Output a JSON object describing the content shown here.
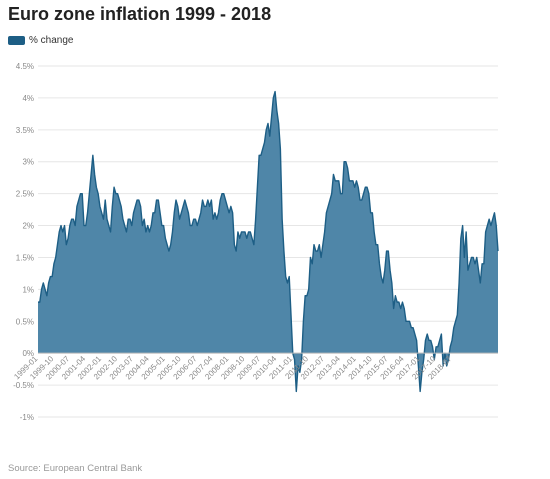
{
  "title": "Euro zone inflation 1999 - 2018",
  "source": "Source: European Central Bank",
  "colors": {
    "fill": "#4f86a8",
    "stroke": "#1d5e85",
    "grid": "#e6e6e6",
    "tick_text": "#888888"
  },
  "chart_data": {
    "type": "area",
    "title": "Euro zone inflation 1999 - 2018",
    "xlabel": "",
    "ylabel": "",
    "ylim": [
      -1,
      4.5
    ],
    "yticks": [
      -1,
      -0.5,
      0,
      0.5,
      1,
      1.5,
      2,
      2.5,
      3,
      3.5,
      4,
      4.5
    ],
    "ytick_labels": [
      "-1%",
      "-0.5%",
      "0%",
      "0.5%",
      "1%",
      "1.5%",
      "2%",
      "2.5%",
      "3%",
      "3.5%",
      "4%",
      "4.5%"
    ],
    "xticks": [
      "1999-01",
      "1999-10",
      "2000-07",
      "2001-04",
      "2002-01",
      "2002-10",
      "2003-07",
      "2004-04",
      "2005-01",
      "2005-10",
      "2006-07",
      "2007-04",
      "2008-01",
      "2008-10",
      "2009-07",
      "2010-04",
      "2011-01",
      "2011-10",
      "2012-07",
      "2013-04",
      "2014-01",
      "2014-10",
      "2015-07",
      "2016-04",
      "2017-01",
      "2017-10",
      "2018-07"
    ],
    "x_start": "1999-01",
    "grid": true,
    "legend_position": "top-left",
    "series": [
      {
        "name": "% change",
        "values": [
          0.8,
          0.8,
          1.0,
          1.1,
          1.0,
          0.9,
          1.1,
          1.2,
          1.2,
          1.4,
          1.5,
          1.7,
          1.9,
          2.0,
          1.9,
          2.0,
          1.7,
          1.8,
          2.0,
          2.1,
          2.1,
          2.0,
          2.3,
          2.4,
          2.5,
          2.5,
          2.0,
          2.0,
          2.2,
          2.5,
          2.8,
          3.1,
          2.8,
          2.6,
          2.5,
          2.3,
          2.2,
          2.1,
          2.4,
          2.1,
          2.0,
          1.9,
          2.3,
          2.6,
          2.5,
          2.5,
          2.4,
          2.3,
          2.1,
          2.0,
          1.9,
          2.1,
          2.1,
          2.0,
          2.2,
          2.3,
          2.4,
          2.4,
          2.3,
          2.0,
          2.1,
          1.9,
          2.0,
          1.9,
          2.0,
          2.2,
          2.2,
          2.4,
          2.4,
          2.2,
          2.0,
          2.0,
          1.8,
          1.7,
          1.6,
          1.7,
          1.9,
          2.2,
          2.4,
          2.3,
          2.1,
          2.2,
          2.3,
          2.4,
          2.3,
          2.2,
          2.0,
          2.0,
          2.1,
          2.1,
          2.0,
          2.1,
          2.2,
          2.4,
          2.3,
          2.3,
          2.4,
          2.3,
          2.4,
          2.1,
          2.2,
          2.1,
          2.2,
          2.4,
          2.5,
          2.5,
          2.4,
          2.3,
          2.2,
          2.3,
          2.2,
          1.7,
          1.6,
          1.9,
          1.8,
          1.9,
          1.9,
          1.9,
          1.8,
          1.9,
          1.9,
          1.8,
          1.7,
          2.1,
          2.6,
          3.1,
          3.1,
          3.2,
          3.3,
          3.5,
          3.6,
          3.4,
          3.7,
          4.0,
          4.1,
          3.8,
          3.6,
          3.2,
          2.1,
          1.6,
          1.2,
          1.1,
          1.2,
          0.6,
          0.0,
          -0.1,
          -0.6,
          -0.2,
          -0.3,
          -0.1,
          0.5,
          0.9,
          0.9,
          1.0,
          1.5,
          1.4,
          1.7,
          1.6,
          1.6,
          1.7,
          1.5,
          1.7,
          1.9,
          2.2,
          2.3,
          2.4,
          2.5,
          2.8,
          2.7,
          2.7,
          2.7,
          2.5,
          2.5,
          3.0,
          3.0,
          2.9,
          2.7,
          2.7,
          2.7,
          2.6,
          2.7,
          2.6,
          2.4,
          2.4,
          2.5,
          2.6,
          2.6,
          2.5,
          2.2,
          2.2,
          1.9,
          1.7,
          1.7,
          1.4,
          1.2,
          1.1,
          1.3,
          1.6,
          1.6,
          1.3,
          1.1,
          0.7,
          0.9,
          0.8,
          0.8,
          0.7,
          0.8,
          0.7,
          0.5,
          0.5,
          0.5,
          0.4,
          0.4,
          0.3,
          0.2,
          -0.2,
          -0.6,
          -0.3,
          -0.1,
          0.2,
          0.3,
          0.2,
          0.2,
          0.1,
          -0.1,
          0.1,
          0.1,
          0.2,
          0.3,
          -0.2,
          0.0,
          -0.2,
          -0.1,
          0.1,
          0.2,
          0.4,
          0.5,
          0.6,
          1.1,
          1.8,
          2.0,
          1.5,
          1.9,
          1.3,
          1.4,
          1.5,
          1.5,
          1.4,
          1.5,
          1.3,
          1.1,
          1.4,
          1.4,
          1.9,
          2.0,
          2.1,
          2.0,
          2.1,
          2.2,
          2.0,
          1.6
        ]
      }
    ]
  }
}
